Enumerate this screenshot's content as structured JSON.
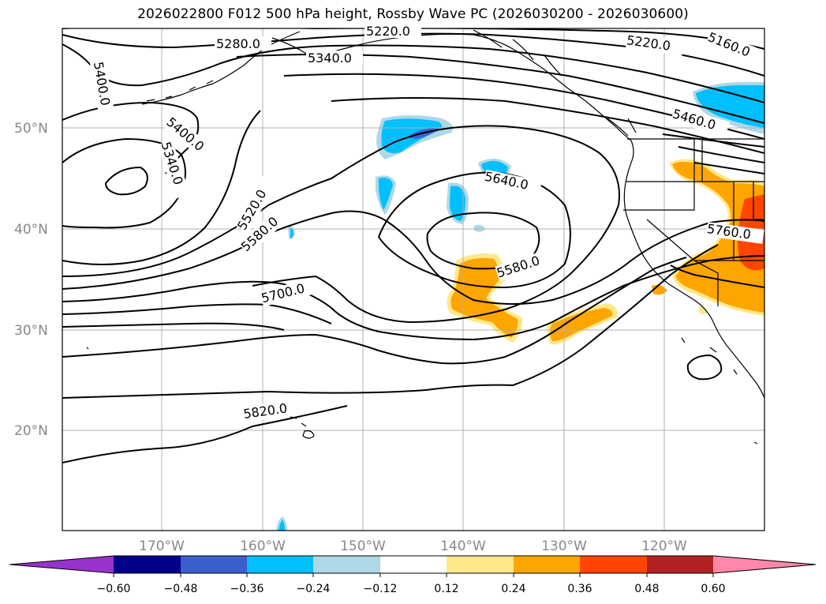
{
  "title": "2026022800 F012 500 hPa height, Rossby Wave PC (2026030200 - 2026030600)",
  "map": {
    "lat_labels": [
      "50°N",
      "40°N",
      "30°N",
      "20°N"
    ],
    "lon_labels": [
      "170°W",
      "160°W",
      "150°W",
      "140°W",
      "130°W",
      "120°W"
    ],
    "contour_labels": [
      "5220.0",
      "5280.0",
      "5340.0",
      "5220.0",
      "5160.0",
      "5400.0",
      "5460.0",
      "5400.0",
      "5340.0",
      "5640.0",
      "5520.0",
      "5580.0",
      "5760.0",
      "5580.0",
      "5700.0",
      "5820.0"
    ],
    "colors": {
      "land_outline": "#000000",
      "contour": "#000000",
      "grid": "#b0b0b0"
    }
  },
  "colorbar": {
    "ticks": [
      "−0.60",
      "−0.48",
      "−0.36",
      "−0.24",
      "−0.12",
      "0.12",
      "0.24",
      "0.36",
      "0.48",
      "0.60"
    ],
    "colors": [
      "#9932cc",
      "#00008b",
      "#3a5fcd",
      "#00bfff",
      "#add8e6",
      "#ffffff",
      "#ffe88a",
      "#ffa500",
      "#ff4500",
      "#b22222",
      "#ff88aa"
    ]
  }
}
